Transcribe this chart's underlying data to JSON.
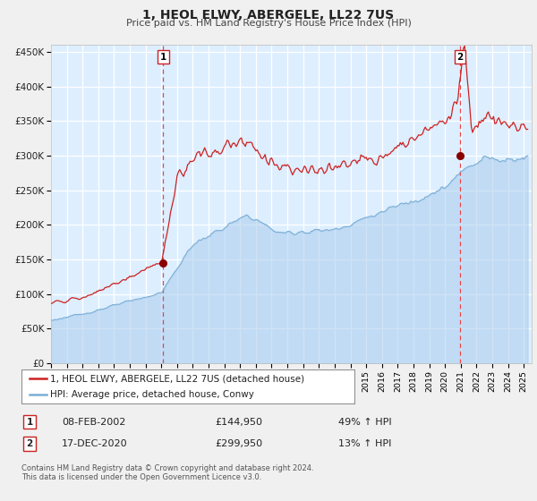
{
  "title": "1, HEOL ELWY, ABERGELE, LL22 7US",
  "subtitle": "Price paid vs. HM Land Registry's House Price Index (HPI)",
  "ylim": [
    0,
    460000
  ],
  "xlim_start": 1995.0,
  "xlim_end": 2025.5,
  "yticks": [
    0,
    50000,
    100000,
    150000,
    200000,
    250000,
    300000,
    350000,
    400000,
    450000
  ],
  "ytick_labels": [
    "£0",
    "£50K",
    "£100K",
    "£150K",
    "£200K",
    "£250K",
    "£300K",
    "£350K",
    "£400K",
    "£450K"
  ],
  "xticks": [
    1995,
    1996,
    1997,
    1998,
    1999,
    2000,
    2001,
    2002,
    2003,
    2004,
    2005,
    2006,
    2007,
    2008,
    2009,
    2010,
    2011,
    2012,
    2013,
    2014,
    2015,
    2016,
    2017,
    2018,
    2019,
    2020,
    2021,
    2022,
    2023,
    2024,
    2025
  ],
  "plot_bg_color": "#ddeeff",
  "fig_bg_color": "#f0f0f0",
  "grid_color": "#ffffff",
  "hpi_color": "#7bafd4",
  "hpi_fill_color": "#aaccee",
  "price_color": "#cc2222",
  "vline_color": "#ee4444",
  "marker_color": "#880000",
  "point1_x": 2002.12,
  "point1_y": 144950,
  "point2_x": 2020.96,
  "point2_y": 299950,
  "legend_price_label": "1, HEOL ELWY, ABERGELE, LL22 7US (detached house)",
  "legend_hpi_label": "HPI: Average price, detached house, Conwy",
  "table_row1_num": "1",
  "table_row1_date": "08-FEB-2002",
  "table_row1_price": "£144,950",
  "table_row1_hpi": "49% ↑ HPI",
  "table_row2_num": "2",
  "table_row2_date": "17-DEC-2020",
  "table_row2_price": "£299,950",
  "table_row2_hpi": "13% ↑ HPI",
  "footer_line1": "Contains HM Land Registry data © Crown copyright and database right 2024.",
  "footer_line2": "This data is licensed under the Open Government Licence v3.0."
}
